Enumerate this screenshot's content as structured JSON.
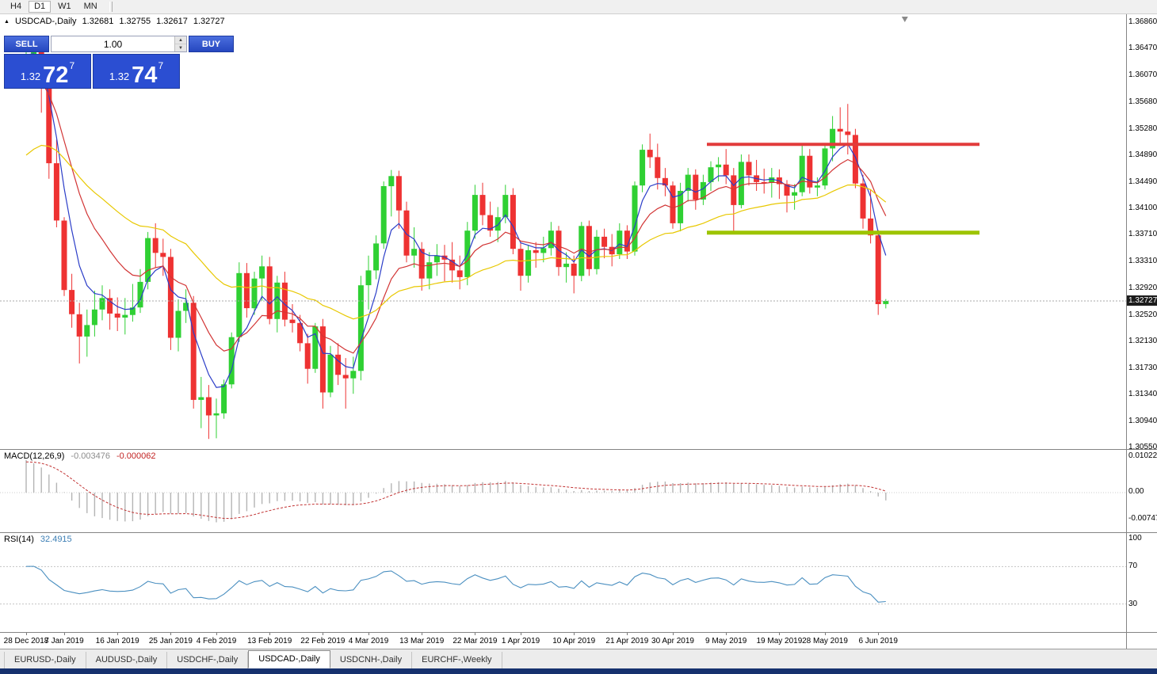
{
  "toolbar": {
    "periods": [
      "H4",
      "D1",
      "W1",
      "MN"
    ]
  },
  "chart_header": {
    "symbol": "USDCAD-,Daily",
    "open": "1.32681",
    "high": "1.32755",
    "low": "1.32617",
    "close": "1.32727"
  },
  "one_click": {
    "sell_label": "SELL",
    "buy_label": "BUY",
    "volume": "1.00",
    "sell_price": {
      "base": "1.32",
      "big": "72",
      "sup": "7"
    },
    "buy_price": {
      "base": "1.32",
      "big": "74",
      "sup": "7"
    }
  },
  "icons": {
    "header_marker": "▲",
    "spin_up": "▲",
    "spin_down": "▼"
  },
  "tabs": {
    "items": [
      {
        "label": "EURUSD-,Daily"
      },
      {
        "label": "AUDUSD-,Daily"
      },
      {
        "label": "USDCHF-,Daily"
      },
      {
        "label": "USDCAD-,Daily"
      },
      {
        "label": "USDCNH-,Daily"
      },
      {
        "label": "EURCHF-,Weekly"
      }
    ],
    "active_index": 3
  },
  "chart_data": {
    "type": "candlestick",
    "symbol": "USDCAD",
    "timeframe": "Daily",
    "colors": {
      "up_candle": "#2fd033",
      "down_candle": "#ee3232",
      "macd_histogram": "#b4b4b4",
      "macd_signal": "#c23333",
      "rsi_line": "#4a8fc0",
      "current_price_line": "#aaaaaa"
    },
    "price_range": {
      "top": 1.3698,
      "bottom": 1.3053
    },
    "y_axis_labels": [
      "1.36860",
      "1.36470",
      "1.36070",
      "1.35680",
      "1.35280",
      "1.34890",
      "1.34490",
      "1.34100",
      "1.33710",
      "1.33310",
      "1.32920",
      "1.32520",
      "1.32130",
      "1.31730",
      "1.31340",
      "1.30940",
      "1.30550"
    ],
    "x_labels": [
      {
        "label": "28 Dec 2018",
        "bar": 0
      },
      {
        "label": "7 Jan 2019",
        "bar": 5
      },
      {
        "label": "16 Jan 2019",
        "bar": 12
      },
      {
        "label": "25 Jan 2019",
        "bar": 19
      },
      {
        "label": "4 Feb 2019",
        "bar": 25
      },
      {
        "label": "13 Feb 2019",
        "bar": 32
      },
      {
        "label": "22 Feb 2019",
        "bar": 39
      },
      {
        "label": "4 Mar 2019",
        "bar": 45
      },
      {
        "label": "13 Mar 2019",
        "bar": 52
      },
      {
        "label": "22 Mar 2019",
        "bar": 59
      },
      {
        "label": "1 Apr 2019",
        "bar": 65
      },
      {
        "label": "10 Apr 2019",
        "bar": 72
      },
      {
        "label": "21 Apr 2019",
        "bar": 79
      },
      {
        "label": "30 Apr 2019",
        "bar": 85
      },
      {
        "label": "9 May 2019",
        "bar": 92
      },
      {
        "label": "19 May 2019",
        "bar": 99
      },
      {
        "label": "28 May 2019",
        "bar": 105
      },
      {
        "label": "6 Jun 2019",
        "bar": 112
      }
    ],
    "candles": [
      [
        1.3612,
        1.3645,
        1.359,
        1.3638
      ],
      [
        1.3638,
        1.3664,
        1.3599,
        1.3642
      ],
      [
        1.3642,
        1.3655,
        1.3552,
        1.36
      ],
      [
        1.36,
        1.3618,
        1.3454,
        1.3477
      ],
      [
        1.3477,
        1.3512,
        1.3382,
        1.3392
      ],
      [
        1.3392,
        1.3397,
        1.328,
        1.3289
      ],
      [
        1.3289,
        1.3313,
        1.3233,
        1.3253
      ],
      [
        1.3253,
        1.327,
        1.318,
        1.322
      ],
      [
        1.322,
        1.326,
        1.319,
        1.3237
      ],
      [
        1.3237,
        1.3288,
        1.322,
        1.326
      ],
      [
        1.326,
        1.3296,
        1.3244,
        1.3277
      ],
      [
        1.3277,
        1.329,
        1.323,
        1.3254
      ],
      [
        1.3254,
        1.3278,
        1.3228,
        1.3248
      ],
      [
        1.3248,
        1.3277,
        1.3223,
        1.3252
      ],
      [
        1.3252,
        1.3298,
        1.3242,
        1.3263
      ],
      [
        1.3263,
        1.332,
        1.3255,
        1.3301
      ],
      [
        1.3301,
        1.3375,
        1.329,
        1.3366
      ],
      [
        1.3366,
        1.3388,
        1.3322,
        1.3344
      ],
      [
        1.3344,
        1.3365,
        1.331,
        1.3338
      ],
      [
        1.3338,
        1.335,
        1.32,
        1.3218
      ],
      [
        1.3218,
        1.3275,
        1.3198,
        1.3258
      ],
      [
        1.3258,
        1.329,
        1.324,
        1.327
      ],
      [
        1.327,
        1.328,
        1.3113,
        1.3126
      ],
      [
        1.3126,
        1.316,
        1.3084,
        1.313
      ],
      [
        1.313,
        1.3148,
        1.3068,
        1.3103
      ],
      [
        1.3103,
        1.3128,
        1.3069,
        1.3106
      ],
      [
        1.3106,
        1.3156,
        1.3098,
        1.3149
      ],
      [
        1.3149,
        1.3226,
        1.3143,
        1.3219
      ],
      [
        1.3219,
        1.333,
        1.3212,
        1.3314
      ],
      [
        1.3314,
        1.3329,
        1.3248,
        1.3262
      ],
      [
        1.3262,
        1.3316,
        1.3252,
        1.3306
      ],
      [
        1.3306,
        1.334,
        1.3273,
        1.3324
      ],
      [
        1.3324,
        1.3338,
        1.3238,
        1.3246
      ],
      [
        1.3246,
        1.331,
        1.3226,
        1.33
      ],
      [
        1.33,
        1.3316,
        1.3235,
        1.3245
      ],
      [
        1.3245,
        1.3268,
        1.3226,
        1.324
      ],
      [
        1.324,
        1.3252,
        1.3198,
        1.321
      ],
      [
        1.321,
        1.3224,
        1.315,
        1.3172
      ],
      [
        1.3172,
        1.324,
        1.3166,
        1.3235
      ],
      [
        1.3235,
        1.3246,
        1.3113,
        1.3137
      ],
      [
        1.3137,
        1.3206,
        1.313,
        1.3193
      ],
      [
        1.3193,
        1.321,
        1.3148,
        1.3163
      ],
      [
        1.3163,
        1.3188,
        1.3113,
        1.3158
      ],
      [
        1.3158,
        1.319,
        1.3135,
        1.3169
      ],
      [
        1.3169,
        1.331,
        1.3155,
        1.3296
      ],
      [
        1.3296,
        1.334,
        1.326,
        1.3318
      ],
      [
        1.3318,
        1.337,
        1.3305,
        1.3358
      ],
      [
        1.3358,
        1.345,
        1.335,
        1.3443
      ],
      [
        1.3443,
        1.3467,
        1.3398,
        1.3458
      ],
      [
        1.3458,
        1.3466,
        1.338,
        1.3407
      ],
      [
        1.3407,
        1.342,
        1.333,
        1.334
      ],
      [
        1.334,
        1.3382,
        1.3322,
        1.335
      ],
      [
        1.335,
        1.336,
        1.3288,
        1.3306
      ],
      [
        1.3306,
        1.3345,
        1.329,
        1.333
      ],
      [
        1.333,
        1.3357,
        1.331,
        1.334
      ],
      [
        1.334,
        1.3356,
        1.3302,
        1.3334
      ],
      [
        1.3334,
        1.336,
        1.33,
        1.3318
      ],
      [
        1.3318,
        1.334,
        1.329,
        1.3308
      ],
      [
        1.3308,
        1.339,
        1.3296,
        1.3377
      ],
      [
        1.3377,
        1.3445,
        1.3365,
        1.343
      ],
      [
        1.343,
        1.3448,
        1.3385,
        1.34
      ],
      [
        1.34,
        1.342,
        1.3368,
        1.3377
      ],
      [
        1.3377,
        1.3412,
        1.336,
        1.3397
      ],
      [
        1.3397,
        1.3445,
        1.3388,
        1.343
      ],
      [
        1.343,
        1.344,
        1.3342,
        1.335
      ],
      [
        1.335,
        1.336,
        1.3288,
        1.331
      ],
      [
        1.331,
        1.3356,
        1.33,
        1.3348
      ],
      [
        1.3348,
        1.336,
        1.3322,
        1.3344
      ],
      [
        1.3344,
        1.3368,
        1.333,
        1.3351
      ],
      [
        1.3351,
        1.339,
        1.334,
        1.3377
      ],
      [
        1.3377,
        1.3384,
        1.331,
        1.3323
      ],
      [
        1.3323,
        1.3345,
        1.33,
        1.3328
      ],
      [
        1.3328,
        1.334,
        1.3284,
        1.331
      ],
      [
        1.331,
        1.339,
        1.3302,
        1.3384
      ],
      [
        1.3384,
        1.3392,
        1.331,
        1.332
      ],
      [
        1.332,
        1.3378,
        1.3312,
        1.3368
      ],
      [
        1.3368,
        1.338,
        1.3336,
        1.3353
      ],
      [
        1.3353,
        1.3372,
        1.3324,
        1.3342
      ],
      [
        1.3342,
        1.3388,
        1.3335,
        1.3377
      ],
      [
        1.3377,
        1.3385,
        1.3335,
        1.3346
      ],
      [
        1.3346,
        1.345,
        1.334,
        1.3444
      ],
      [
        1.3444,
        1.3505,
        1.3434,
        1.3497
      ],
      [
        1.3497,
        1.3521,
        1.347,
        1.3486
      ],
      [
        1.3486,
        1.3506,
        1.3438,
        1.3455
      ],
      [
        1.3455,
        1.347,
        1.3428,
        1.3444
      ],
      [
        1.3444,
        1.345,
        1.338,
        1.3388
      ],
      [
        1.3388,
        1.3448,
        1.3376,
        1.3436
      ],
      [
        1.3436,
        1.347,
        1.342,
        1.346
      ],
      [
        1.346,
        1.3468,
        1.3408,
        1.3423
      ],
      [
        1.3423,
        1.346,
        1.3415,
        1.3449
      ],
      [
        1.3449,
        1.348,
        1.3436,
        1.3471
      ],
      [
        1.3471,
        1.3486,
        1.345,
        1.3475
      ],
      [
        1.3475,
        1.3498,
        1.3446,
        1.3459
      ],
      [
        1.3459,
        1.347,
        1.3375,
        1.3415
      ],
      [
        1.3415,
        1.349,
        1.341,
        1.3479
      ],
      [
        1.3479,
        1.349,
        1.3444,
        1.3459
      ],
      [
        1.3459,
        1.3482,
        1.3436,
        1.3449
      ],
      [
        1.3449,
        1.3469,
        1.3432,
        1.3448
      ],
      [
        1.3448,
        1.347,
        1.3426,
        1.3456
      ],
      [
        1.3456,
        1.3468,
        1.3424,
        1.3446
      ],
      [
        1.3446,
        1.3452,
        1.3404,
        1.3429
      ],
      [
        1.3429,
        1.3446,
        1.3408,
        1.3434
      ],
      [
        1.3434,
        1.3503,
        1.3428,
        1.3488
      ],
      [
        1.3488,
        1.3498,
        1.3432,
        1.3441
      ],
      [
        1.3441,
        1.3456,
        1.3428,
        1.3444
      ],
      [
        1.3444,
        1.3506,
        1.3438,
        1.3499
      ],
      [
        1.3499,
        1.3547,
        1.348,
        1.3528
      ],
      [
        1.3528,
        1.356,
        1.3506,
        1.3524
      ],
      [
        1.3524,
        1.3565,
        1.349,
        1.3519
      ],
      [
        1.3519,
        1.3528,
        1.344,
        1.3447
      ],
      [
        1.3447,
        1.346,
        1.338,
        1.3395
      ],
      [
        1.3395,
        1.3438,
        1.3358,
        1.337
      ],
      [
        1.337,
        1.3378,
        1.3252,
        1.3268
      ],
      [
        1.32681,
        1.32755,
        1.32617,
        1.32727
      ]
    ],
    "moving_averages": [
      {
        "name": "fast",
        "period": 5,
        "seed": 1.3638,
        "color": "#2b3dc8"
      },
      {
        "name": "medium",
        "period": 12,
        "seed": 1.358,
        "color": "#d23535"
      },
      {
        "name": "slow",
        "period": 34,
        "seed": 1.348,
        "color": "#e8c800"
      }
    ],
    "levels": [
      {
        "name": "resistance",
        "price": 1.3505,
        "bar_start": 89.5,
        "bar_end": 125.3,
        "color": "#e23b3b",
        "width": 4
      },
      {
        "name": "support",
        "price": 1.3374,
        "bar_start": 89.5,
        "bar_end": 125.3,
        "color": "#9dc400",
        "width": 5
      }
    ],
    "current_price": "1.32727",
    "indicators": {
      "macd": {
        "label": "MACD(12,26,9)",
        "value_main": "-0.003476",
        "value_signal": "-0.000062",
        "axis": [
          "0.010229",
          "0.00",
          "-0.00747"
        ]
      },
      "rsi": {
        "label": "RSI(14)",
        "value": "32.4915",
        "axis": [
          "100",
          "70",
          "30"
        ],
        "levels": [
          70,
          30
        ]
      }
    }
  }
}
